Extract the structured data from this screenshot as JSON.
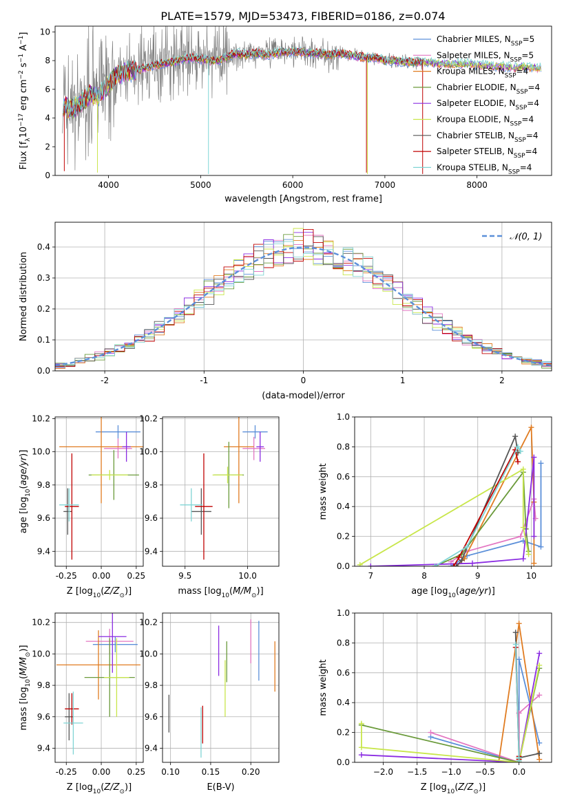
{
  "figure_title": "PLATE=1579, MJD=53473, FIBERID=0186, z=0.074",
  "colors": {
    "chabrier_miles": "#5b8fd9",
    "salpeter_miles": "#e377c2",
    "kroupa_miles": "#e07b20",
    "chabrier_elodie": "#6a9a3a",
    "salpeter_elodie": "#8a2be2",
    "kroupa_elodie": "#c8e64a",
    "chabrier_stelib": "#555555",
    "salpeter_stelib": "#c00000",
    "kroupa_stelib": "#7fd4d4",
    "data_gray": "#7f7f7f",
    "normal_curve": "#5b8fd9"
  },
  "chart_data": [
    {
      "id": "spectrum",
      "type": "line",
      "title": "PLATE=1579, MJD=53473, FIBERID=0186, z=0.074",
      "xlabel": "wavelength [Angstrom, rest frame]",
      "ylabel": "Flux [f_λ10^-17 erg cm^-2 s^-1 A^-1]",
      "xlim": [
        3420,
        8810
      ],
      "ylim": [
        0,
        10.4
      ],
      "xticks": [
        4000,
        5000,
        6000,
        7000,
        8000
      ],
      "yticks": [
        0,
        2,
        4,
        6,
        8,
        10
      ],
      "legend_position": "right",
      "legend": [
        {
          "label": "Chabrier MILES, N",
          "sub": "SSP",
          "suffix": "=5",
          "color": "chabrier_miles"
        },
        {
          "label": "Salpeter MILES, N",
          "sub": "SSP",
          "suffix": "=5",
          "color": "salpeter_miles"
        },
        {
          "label": "Kroupa MILES, N",
          "sub": "SSP",
          "suffix": "=4",
          "color": "kroupa_miles"
        },
        {
          "label": "Chabrier ELODIE, N",
          "sub": "SSP",
          "suffix": "=4",
          "color": "chabrier_elodie"
        },
        {
          "label": "Salpeter ELODIE, N",
          "sub": "SSP",
          "suffix": "=4",
          "color": "salpeter_elodie"
        },
        {
          "label": "Kroupa ELODIE, N",
          "sub": "SSP",
          "suffix": "=4",
          "color": "kroupa_elodie"
        },
        {
          "label": "Chabrier STELIB, N",
          "sub": "SSP",
          "suffix": "=4",
          "color": "chabrier_stelib"
        },
        {
          "label": "Salpeter STELIB, N",
          "sub": "SSP",
          "suffix": "=4",
          "color": "salpeter_stelib"
        },
        {
          "label": "Kroupa STELIB, N",
          "sub": "SSP",
          "suffix": "=4",
          "color": "kroupa_stelib"
        }
      ],
      "continuum": {
        "x": [
          3500,
          3600,
          3700,
          3800,
          3900,
          4000,
          4100,
          4200,
          4300,
          4400,
          4500,
          4600,
          4700,
          4800,
          4900,
          5000,
          5100,
          5200,
          5300,
          5400,
          5500,
          5600,
          5700,
          5800,
          5900,
          6000,
          6100,
          6200,
          6300,
          6400,
          6500,
          6600,
          6700,
          6800,
          6900,
          7000,
          7100,
          7200,
          7300,
          7400,
          7500,
          7600,
          7700,
          7800,
          7900,
          8000,
          8100,
          8200,
          8300,
          8400,
          8500,
          8600,
          8700
        ],
        "y": [
          4.9,
          4.6,
          5.0,
          5.6,
          5.6,
          6.3,
          7.1,
          7.2,
          7.3,
          7.5,
          7.7,
          7.8,
          7.9,
          8.1,
          8.2,
          8.1,
          8.0,
          8.0,
          8.3,
          8.5,
          8.4,
          8.5,
          8.4,
          8.5,
          8.6,
          8.6,
          8.6,
          8.5,
          8.5,
          8.4,
          8.5,
          8.4,
          8.3,
          8.2,
          8.2,
          8.0,
          8.0,
          7.9,
          7.9,
          7.9,
          7.9,
          7.8,
          7.8,
          7.8,
          7.8,
          7.7,
          7.7,
          7.6,
          7.6,
          7.5,
          7.6,
          7.5,
          7.5
        ]
      }
    },
    {
      "id": "residuals",
      "type": "bar",
      "xlabel": "(data-model)/error",
      "ylabel": "Normed distribution",
      "xlim": [
        -2.5,
        2.5
      ],
      "ylim": [
        0,
        0.48
      ],
      "xticks": [
        -2,
        -1,
        0,
        1,
        2
      ],
      "yticks": [
        0.0,
        0.1,
        0.2,
        0.3,
        0.4
      ],
      "grid": true,
      "legend_position": "top-right",
      "legend": [
        {
          "label": "𝒩(0, 1)",
          "color": "normal_curve"
        }
      ]
    },
    {
      "id": "age_vs_Z",
      "type": "scatter",
      "xlabel": "Z [log10(Z/Z⊙)]",
      "ylabel": "age  [log10(age/yr)]",
      "xlim": [
        -0.33,
        0.3
      ],
      "ylim": [
        9.31,
        10.21
      ],
      "xticks": [
        -0.25,
        0.0,
        0.25
      ],
      "yticks": [
        9.4,
        9.6,
        9.8,
        10.0,
        10.2
      ],
      "grid": true,
      "points": [
        {
          "x": 0.12,
          "y": 10.12,
          "xerr": 0.16,
          "yerr": 0.04,
          "color": "chabrier_miles"
        },
        {
          "x": 0.12,
          "y": 10.02,
          "xerr": 0.1,
          "yerr": 0.06,
          "color": "salpeter_miles"
        },
        {
          "x": 0.0,
          "y": 10.03,
          "xerr": 0.3,
          "yerr": 0.34,
          "color": "kroupa_miles"
        },
        {
          "x": 0.09,
          "y": 9.86,
          "xerr": 0.18,
          "yerr": 0.15,
          "color": "chabrier_elodie"
        },
        {
          "x": 0.18,
          "y": 10.03,
          "xerr": 0.03,
          "yerr": 0.09,
          "color": "salpeter_elodie"
        },
        {
          "x": 0.06,
          "y": 9.86,
          "xerr": 0.13,
          "yerr": 0.03,
          "color": "kroupa_elodie"
        },
        {
          "x": -0.24,
          "y": 9.64,
          "xerr": 0.03,
          "yerr": 0.14,
          "color": "chabrier_stelib"
        },
        {
          "x": -0.21,
          "y": 9.67,
          "xerr": 0.05,
          "yerr": 0.32,
          "color": "salpeter_stelib"
        },
        {
          "x": -0.23,
          "y": 9.68,
          "xerr": 0.07,
          "yerr": 0.1,
          "color": "kroupa_stelib"
        }
      ]
    },
    {
      "id": "age_vs_mass",
      "type": "scatter",
      "xlabel": "mass [log10(M/M⊙)]",
      "xlim": [
        9.32,
        10.25
      ],
      "ylim": [
        9.31,
        10.21
      ],
      "xticks": [
        9.5,
        10.0
      ],
      "yticks": [
        9.4,
        9.6,
        9.8,
        10.0,
        10.2
      ],
      "grid": true,
      "points": [
        {
          "x": 10.06,
          "y": 10.12,
          "xerr": 0.1,
          "yerr": 0.04,
          "color": "chabrier_miles"
        },
        {
          "x": 10.05,
          "y": 10.02,
          "xerr": 0.09,
          "yerr": 0.07,
          "color": "salpeter_miles"
        },
        {
          "x": 9.93,
          "y": 10.03,
          "xerr": 0.12,
          "yerr": 0.34,
          "color": "kroupa_miles"
        },
        {
          "x": 9.85,
          "y": 9.86,
          "xerr": 0.12,
          "yerr": 0.2,
          "color": "chabrier_elodie"
        },
        {
          "x": 10.1,
          "y": 10.03,
          "xerr": 0.03,
          "yerr": 0.09,
          "color": "salpeter_elodie"
        },
        {
          "x": 9.84,
          "y": 9.86,
          "xerr": 0.12,
          "yerr": 0.05,
          "color": "kroupa_elodie"
        },
        {
          "x": 9.63,
          "y": 9.64,
          "xerr": 0.08,
          "yerr": 0.14,
          "color": "chabrier_stelib"
        },
        {
          "x": 9.65,
          "y": 9.67,
          "xerr": 0.07,
          "yerr": 0.32,
          "color": "salpeter_stelib"
        },
        {
          "x": 9.55,
          "y": 9.68,
          "xerr": 0.09,
          "yerr": 0.1,
          "color": "kroupa_stelib"
        }
      ]
    },
    {
      "id": "weight_vs_age",
      "type": "line",
      "xlabel": "age  [log10(age/yr)]",
      "ylabel": "mass weight",
      "xlim": [
        6.7,
        10.38
      ],
      "ylim": [
        0,
        1.0
      ],
      "xticks": [
        7,
        8,
        9,
        10
      ],
      "yticks": [
        0.0,
        0.2,
        0.4,
        0.6,
        0.8,
        1.0
      ],
      "grid": true,
      "series": [
        {
          "color": "chabrier_miles",
          "x": [
            8.5,
            8.8,
            9.85,
            10.18,
            10.18
          ],
          "y": [
            0.0,
            0.07,
            0.17,
            0.13,
            0.69
          ]
        },
        {
          "color": "salpeter_miles",
          "x": [
            8.5,
            8.8,
            9.8,
            10.05,
            10.08
          ],
          "y": [
            0.03,
            0.1,
            0.2,
            0.45,
            0.32
          ]
        },
        {
          "color": "kroupa_miles",
          "x": [
            8.6,
            8.75,
            10.0,
            10.05,
            10.05
          ],
          "y": [
            0.0,
            0.05,
            0.93,
            0.43,
            0.02
          ]
        },
        {
          "color": "chabrier_elodie",
          "x": [
            8.2,
            8.7,
            9.85,
            9.9,
            9.95
          ],
          "y": [
            0.0,
            0.08,
            0.63,
            0.25,
            0.1
          ]
        },
        {
          "color": "salpeter_elodie",
          "x": [
            7.0,
            8.9,
            9.85,
            10.05,
            10.05
          ],
          "y": [
            0.0,
            0.02,
            0.05,
            0.73,
            0.2
          ]
        },
        {
          "color": "kroupa_elodie",
          "x": [
            6.8,
            9.85,
            9.85,
            9.95
          ],
          "y": [
            0.01,
            0.65,
            0.26,
            0.08
          ]
        },
        {
          "color": "chabrier_stelib",
          "x": [
            8.6,
            8.7,
            9.7,
            9.75
          ],
          "y": [
            0.0,
            0.04,
            0.87,
            0.76
          ]
        },
        {
          "color": "salpeter_stelib",
          "x": [
            8.55,
            8.65,
            9.7,
            9.75
          ],
          "y": [
            0.0,
            0.06,
            0.78,
            0.7
          ]
        },
        {
          "color": "kroupa_stelib",
          "x": [
            8.2,
            8.8,
            9.75,
            9.8
          ],
          "y": [
            0.0,
            0.13,
            0.8,
            0.77
          ]
        }
      ]
    },
    {
      "id": "mass_vs_Z",
      "type": "scatter",
      "xlabel": "Z [log10(Z/Z⊙)]",
      "ylabel": "mass [log10(M/M⊙)]",
      "xlim": [
        -0.33,
        0.3
      ],
      "ylim": [
        9.31,
        10.26
      ],
      "xticks": [
        -0.25,
        0.0,
        0.25
      ],
      "yticks": [
        9.4,
        9.6,
        9.8,
        10.0,
        10.2
      ],
      "grid": true,
      "points": [
        {
          "x": 0.1,
          "y": 10.06,
          "xerr": 0.16,
          "yerr": 0.05,
          "color": "chabrier_miles"
        },
        {
          "x": 0.06,
          "y": 10.08,
          "xerr": 0.17,
          "yerr": 0.08,
          "color": "salpeter_miles"
        },
        {
          "x": -0.02,
          "y": 9.93,
          "xerr": 0.3,
          "yerr": 0.22,
          "color": "kroupa_miles"
        },
        {
          "x": 0.06,
          "y": 9.85,
          "xerr": 0.18,
          "yerr": 0.25,
          "color": "chabrier_elodie"
        },
        {
          "x": 0.08,
          "y": 10.11,
          "xerr": 0.1,
          "yerr": 0.23,
          "color": "salpeter_elodie"
        },
        {
          "x": 0.11,
          "y": 9.85,
          "xerr": 0.09,
          "yerr": 0.25,
          "color": "kroupa_elodie"
        },
        {
          "x": -0.23,
          "y": 9.6,
          "xerr": 0.03,
          "yerr": 0.15,
          "color": "chabrier_stelib"
        },
        {
          "x": -0.21,
          "y": 9.65,
          "xerr": 0.05,
          "yerr": 0.1,
          "color": "salpeter_stelib"
        },
        {
          "x": -0.2,
          "y": 9.56,
          "xerr": 0.07,
          "yerr": 0.2,
          "color": "kroupa_stelib"
        }
      ]
    },
    {
      "id": "mass_vs_ebv",
      "type": "scatter",
      "xlabel": "E(B-V)",
      "xlim": [
        0.09,
        0.235
      ],
      "ylim": [
        9.31,
        10.26
      ],
      "xticks": [
        0.1,
        0.15,
        0.2
      ],
      "yticks": [
        9.4,
        9.6,
        9.8,
        10.0,
        10.2
      ],
      "grid": true,
      "points": [
        {
          "x": 0.21,
          "y": 10.02,
          "yerr": 0.19,
          "color": "chabrier_miles"
        },
        {
          "x": 0.2,
          "y": 10.08,
          "yerr": 0.14,
          "color": "salpeter_miles"
        },
        {
          "x": 0.23,
          "y": 9.92,
          "yerr": 0.16,
          "color": "kroupa_miles"
        },
        {
          "x": 0.17,
          "y": 9.95,
          "yerr": 0.13,
          "color": "chabrier_elodie"
        },
        {
          "x": 0.16,
          "y": 10.02,
          "yerr": 0.16,
          "color": "salpeter_elodie"
        },
        {
          "x": 0.168,
          "y": 9.78,
          "yerr": 0.18,
          "color": "kroupa_elodie"
        },
        {
          "x": 0.098,
          "y": 9.62,
          "yerr": 0.12,
          "color": "chabrier_stelib"
        },
        {
          "x": 0.14,
          "y": 9.55,
          "yerr": 0.12,
          "color": "salpeter_stelib"
        },
        {
          "x": 0.138,
          "y": 9.5,
          "yerr": 0.16,
          "color": "kroupa_stelib"
        }
      ]
    },
    {
      "id": "weight_vs_Z",
      "type": "line",
      "xlabel": "Z [log10(Z/Z⊙)]",
      "ylabel": "mass weight",
      "xlim": [
        -2.42,
        0.48
      ],
      "ylim": [
        0,
        1.0
      ],
      "xticks": [
        -2.0,
        -1.5,
        -1.0,
        -0.5,
        0.0
      ],
      "yticks": [
        0.0,
        0.2,
        0.4,
        0.6,
        0.8,
        1.0
      ],
      "grid": true,
      "series": [
        {
          "color": "chabrier_miles",
          "x": [
            -1.3,
            0.0,
            0.0,
            0.3
          ],
          "y": [
            0.17,
            0.0,
            0.69,
            0.13
          ]
        },
        {
          "color": "salpeter_miles",
          "x": [
            -1.3,
            0.0,
            0.0,
            0.3
          ],
          "y": [
            0.2,
            0.0,
            0.33,
            0.45
          ]
        },
        {
          "color": "kroupa_miles",
          "x": [
            -0.3,
            0.0,
            0.3
          ],
          "y": [
            0.0,
            0.93,
            0.02
          ]
        },
        {
          "color": "chabrier_elodie",
          "x": [
            -2.32,
            0.0,
            0.3
          ],
          "y": [
            0.25,
            0.0,
            0.63
          ]
        },
        {
          "color": "salpeter_elodie",
          "x": [
            -2.32,
            0.0,
            0.3
          ],
          "y": [
            0.05,
            0.0,
            0.73
          ]
        },
        {
          "color": "kroupa_elodie",
          "x": [
            -2.32,
            -2.32,
            0.0,
            0.3
          ],
          "y": [
            0.26,
            0.1,
            0.0,
            0.65
          ]
        },
        {
          "color": "chabrier_stelib",
          "x": [
            -0.05,
            0.0,
            0.3
          ],
          "y": [
            0.87,
            0.03,
            0.06
          ]
        },
        {
          "color": "salpeter_stelib",
          "x": [
            -0.05,
            0.0,
            0.0
          ],
          "y": [
            0.77,
            0.02,
            0.04
          ]
        },
        {
          "color": "kroupa_stelib",
          "x": [
            -0.05,
            0.0,
            0.0
          ],
          "y": [
            0.79,
            0.01,
            0.03
          ]
        }
      ]
    }
  ]
}
